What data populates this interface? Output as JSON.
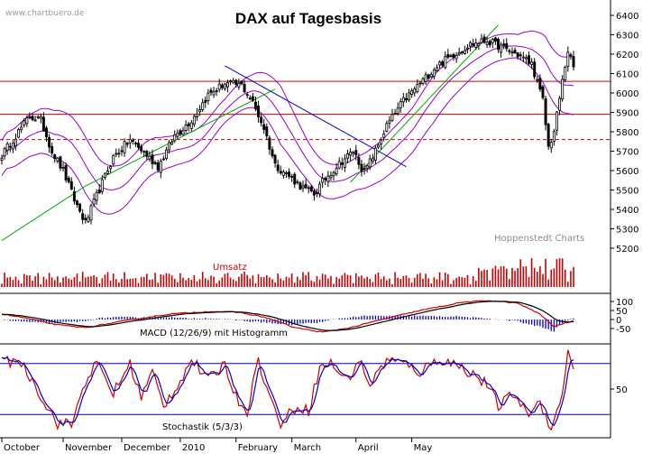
{
  "chart_data": [
    {
      "type": "candlestick",
      "title": "DAX auf Tagesbasis",
      "watermark": "www.chartbuero.de",
      "source": "Hoppenstedt Charts",
      "ylim": [
        5200,
        6400
      ],
      "yticks": [
        5200,
        5300,
        5400,
        5500,
        5600,
        5700,
        5800,
        5900,
        6000,
        6100,
        6200,
        6300,
        6400
      ],
      "x_months": [
        "October",
        "November",
        "December",
        "2010",
        "February",
        "March",
        "April",
        "May"
      ],
      "horizontal_lines": [
        {
          "value": 6060,
          "style": "solid",
          "color": "#cc0000"
        },
        {
          "value": 5890,
          "style": "solid",
          "color": "#cc0000"
        },
        {
          "value": 5760,
          "style": "dashed",
          "color": "#cc0000"
        }
      ],
      "close_anchors": [
        [
          0,
          5680
        ],
        [
          5,
          5780
        ],
        [
          10,
          5880
        ],
        [
          14,
          5860
        ],
        [
          18,
          5700
        ],
        [
          22,
          5600
        ],
        [
          26,
          5450
        ],
        [
          30,
          5330
        ],
        [
          34,
          5470
        ],
        [
          40,
          5670
        ],
        [
          46,
          5760
        ],
        [
          52,
          5680
        ],
        [
          56,
          5620
        ],
        [
          62,
          5780
        ],
        [
          68,
          5860
        ],
        [
          74,
          5990
        ],
        [
          80,
          6050
        ],
        [
          86,
          6040
        ],
        [
          90,
          5950
        ],
        [
          94,
          5820
        ],
        [
          98,
          5630
        ],
        [
          104,
          5560
        ],
        [
          108,
          5510
        ],
        [
          112,
          5480
        ],
        [
          116,
          5560
        ],
        [
          122,
          5650
        ],
        [
          126,
          5700
        ],
        [
          130,
          5590
        ],
        [
          134,
          5700
        ],
        [
          138,
          5830
        ],
        [
          144,
          5960
        ],
        [
          150,
          6050
        ],
        [
          156,
          6140
        ],
        [
          162,
          6200
        ],
        [
          168,
          6250
        ],
        [
          174,
          6270
        ],
        [
          180,
          6230
        ],
        [
          186,
          6190
        ],
        [
          190,
          6150
        ],
        [
          194,
          5960
        ],
        [
          196,
          5720
        ],
        [
          198,
          5800
        ],
        [
          201,
          6060
        ],
        [
          203,
          6220
        ],
        [
          205,
          6130
        ]
      ],
      "bollinger_width": [
        [
          0,
          180
        ],
        [
          20,
          250
        ],
        [
          30,
          290
        ],
        [
          45,
          220
        ],
        [
          60,
          160
        ],
        [
          80,
          120
        ],
        [
          90,
          170
        ],
        [
          100,
          300
        ],
        [
          110,
          200
        ],
        [
          125,
          160
        ],
        [
          140,
          220
        ],
        [
          155,
          240
        ],
        [
          170,
          150
        ],
        [
          185,
          120
        ],
        [
          195,
          260
        ],
        [
          205,
          300
        ]
      ],
      "trendlines": [
        {
          "from": [
            0,
            5240
          ],
          "to": [
            30,
            5520
          ],
          "color": "#00aa00"
        },
        {
          "from": [
            30,
            5520
          ],
          "to": [
            98,
            6020
          ],
          "color": "#00aa00"
        },
        {
          "from": [
            125,
            5540
          ],
          "to": [
            178,
            6350
          ],
          "color": "#00aa00"
        },
        {
          "from": [
            80,
            6140
          ],
          "to": [
            145,
            5620
          ],
          "color": "#0000cc"
        }
      ]
    },
    {
      "type": "bar",
      "title": "Umsatz",
      "values": "daily volume, heights relative"
    },
    {
      "type": "line",
      "title": "MACD (12/26/9) mit Histogramm",
      "ylim": [
        -90,
        130
      ],
      "yticks": [
        100,
        50,
        0,
        -50
      ],
      "macd_anchors": [
        [
          0,
          30
        ],
        [
          8,
          10
        ],
        [
          20,
          -30
        ],
        [
          30,
          -45
        ],
        [
          45,
          -5
        ],
        [
          60,
          30
        ],
        [
          75,
          45
        ],
        [
          85,
          40
        ],
        [
          95,
          10
        ],
        [
          105,
          -45
        ],
        [
          115,
          -70
        ],
        [
          125,
          -45
        ],
        [
          135,
          -5
        ],
        [
          150,
          50
        ],
        [
          165,
          95
        ],
        [
          175,
          105
        ],
        [
          185,
          90
        ],
        [
          193,
          30
        ],
        [
          198,
          -40
        ],
        [
          202,
          -20
        ],
        [
          205,
          -5
        ]
      ]
    },
    {
      "type": "line",
      "title": "Stochastik (5/3/3)",
      "ylim": [
        0,
        100
      ],
      "yticks": [
        50
      ],
      "levels": [
        80,
        20
      ],
      "stoch_anchors": [
        [
          0,
          80
        ],
        [
          6,
          85
        ],
        [
          12,
          55
        ],
        [
          16,
          30
        ],
        [
          20,
          10
        ],
        [
          25,
          8
        ],
        [
          30,
          60
        ],
        [
          34,
          80
        ],
        [
          40,
          45
        ],
        [
          46,
          80
        ],
        [
          50,
          40
        ],
        [
          54,
          70
        ],
        [
          58,
          30
        ],
        [
          64,
          60
        ],
        [
          68,
          85
        ],
        [
          74,
          60
        ],
        [
          80,
          80
        ],
        [
          84,
          40
        ],
        [
          88,
          25
        ],
        [
          92,
          85
        ],
        [
          96,
          40
        ],
        [
          100,
          10
        ],
        [
          106,
          30
        ],
        [
          110,
          25
        ],
        [
          114,
          75
        ],
        [
          118,
          80
        ],
        [
          124,
          60
        ],
        [
          128,
          85
        ],
        [
          132,
          55
        ],
        [
          138,
          85
        ],
        [
          144,
          80
        ],
        [
          150,
          70
        ],
        [
          156,
          85
        ],
        [
          162,
          80
        ],
        [
          168,
          70
        ],
        [
          174,
          55
        ],
        [
          178,
          30
        ],
        [
          184,
          45
        ],
        [
          188,
          20
        ],
        [
          193,
          35
        ],
        [
          197,
          5
        ],
        [
          200,
          30
        ],
        [
          203,
          90
        ],
        [
          205,
          80
        ]
      ]
    }
  ]
}
